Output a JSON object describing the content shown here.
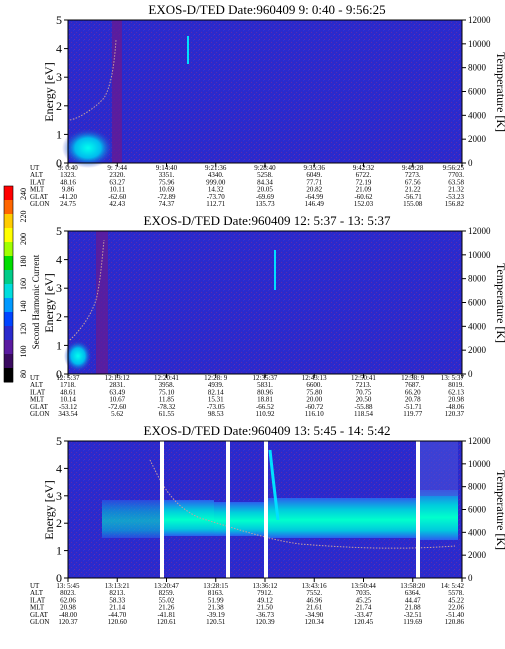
{
  "colors": {
    "background": "#2a2acc",
    "accent": "#6a2aa8",
    "band": "#00e0d0",
    "line": "#b08878"
  },
  "colorbar": {
    "label": "Second Harmonic Current",
    "ticks": [
      "240",
      "220",
      "200",
      "180",
      "160",
      "140",
      "120",
      "100",
      "80"
    ],
    "colors": [
      "#ff0000",
      "#ff6600",
      "#ffcc00",
      "#ffff00",
      "#a0ff00",
      "#00dd00",
      "#00cc88",
      "#00dddd",
      "#0099ff",
      "#0044ff",
      "#2a2acc",
      "#5a1aa0",
      "#3a0a60",
      "#000000"
    ]
  },
  "chart_data": [
    {
      "type": "heatmap",
      "title": "EXOS-D/TED   Date:960409   9: 0:40 - 9:56:25",
      "ylabel": "Energy [eV]",
      "y2label": "Temperature [K]",
      "ylim": [
        0,
        5
      ],
      "y2lim": [
        0,
        12000
      ],
      "yticks": [
        "0",
        "1",
        "2",
        "3",
        "4",
        "5"
      ],
      "y2ticks": [
        "0",
        "2000",
        "4000",
        "6000",
        "8000",
        "10000",
        "12000"
      ],
      "row_labels": [
        "UT",
        "ALT",
        "ILAT",
        "MLT",
        "GLAT",
        "GLON"
      ],
      "columns": [
        [
          "9: 0:40",
          "1323.",
          "48.16",
          "9.86",
          "-41.20",
          "24.75"
        ],
        [
          "9: 7:44",
          "2320.",
          "63.27",
          "10.11",
          "-62.60",
          "42.43"
        ],
        [
          "9:14:40",
          "3351.",
          "75.96",
          "10.69",
          "-72.89",
          "74.37"
        ],
        [
          "9:21:36",
          "4340.",
          "999.00",
          "14.32",
          "-73.70",
          "112.71"
        ],
        [
          "9:28:40",
          "5258.",
          "84.34",
          "20.05",
          "-69.69",
          "135.73"
        ],
        [
          "9:35:36",
          "6049.",
          "77.71",
          "20.82",
          "-64.99",
          "146.49"
        ],
        [
          "9:42:32",
          "6722.",
          "72.19",
          "21.09",
          "-60.62",
          "152.03"
        ],
        [
          "9:49:28",
          "7273.",
          "67.56",
          "21.22",
          "-56.71",
          "155.08"
        ],
        [
          "9:56:25",
          "7703.",
          "63.58",
          "21.32",
          "-53.23",
          "156.82"
        ]
      ]
    },
    {
      "type": "heatmap",
      "title": "EXOS-D/TED   Date:960409   12: 5:37 - 13: 5:37",
      "ylabel": "Energy [eV]",
      "y2label": "Temperature [K]",
      "ylim": [
        0,
        5
      ],
      "y2lim": [
        0,
        12000
      ],
      "yticks": [
        "0",
        "1",
        "2",
        "3",
        "4",
        "5"
      ],
      "y2ticks": [
        "0",
        "2000",
        "4000",
        "6000",
        "8000",
        "10000",
        "12000"
      ],
      "row_labels": [
        "UT",
        "ALT",
        "ILAT",
        "MLT",
        "GLAT",
        "GLON"
      ],
      "columns": [
        [
          "12: 5:37",
          "1718.",
          "48.61",
          "10.14",
          "-53.12",
          "343.54"
        ],
        [
          "12:13:12",
          "2831.",
          "63.49",
          "10.67",
          "-72.60",
          "5.62"
        ],
        [
          "12:20:41",
          "3958.",
          "75.10",
          "11.85",
          "-78.32",
          "61.55"
        ],
        [
          "12:28: 9",
          "4939.",
          "82.14",
          "15.31",
          "-73.05",
          "98.53"
        ],
        [
          "12:35:37",
          "5831.",
          "80.96",
          "18.81",
          "-66.52",
          "110.92"
        ],
        [
          "12:43:13",
          "6600.",
          "75.80",
          "20.00",
          "-60.72",
          "116.10"
        ],
        [
          "12:50:41",
          "7213.",
          "70.75",
          "20.50",
          "-55.88",
          "118.54"
        ],
        [
          "12:58: 9",
          "7687.",
          "66.20",
          "20.78",
          "-51.71",
          "119.77"
        ],
        [
          "13: 5:37",
          "8019.",
          "62.13",
          "20.98",
          "-48.06",
          "120.37"
        ]
      ]
    },
    {
      "type": "heatmap",
      "title": "EXOS-D/TED   Date:960409   13: 5:45 - 14: 5:42",
      "ylabel": "Energy [eV]",
      "y2label": "Temperature [K]",
      "ylim": [
        0,
        5
      ],
      "y2lim": [
        0,
        12000
      ],
      "yticks": [
        "0",
        "1",
        "2",
        "3",
        "4",
        "5"
      ],
      "y2ticks": [
        "0",
        "2000",
        "4000",
        "6000",
        "8000",
        "10000",
        "12000"
      ],
      "row_labels": [
        "UT",
        "ALT",
        "ILAT",
        "MLT",
        "GLAT",
        "GLON"
      ],
      "columns": [
        [
          "13: 5:45",
          "8023.",
          "62.06",
          "20.98",
          "-48.00",
          "120.37"
        ],
        [
          "13:13:21",
          "8213.",
          "58.33",
          "21.14",
          "-44.70",
          "120.60"
        ],
        [
          "13:20:47",
          "8259.",
          "55.02",
          "21.26",
          "-41.81",
          "120.61"
        ],
        [
          "13:28:15",
          "8163.",
          "51.99",
          "21.38",
          "-39.19",
          "120.51"
        ],
        [
          "13:36:12",
          "7912.",
          "49.12",
          "21.50",
          "-36.73",
          "120.39"
        ],
        [
          "13:43:16",
          "7552.",
          "46.96",
          "21.61",
          "-34.90",
          "120.34"
        ],
        [
          "13:50:44",
          "7035.",
          "45.25",
          "21.74",
          "-33.47",
          "120.45"
        ],
        [
          "13:58:20",
          "6364.",
          "44.47",
          "21.88",
          "-32.51",
          "119.69"
        ],
        [
          "14: 5:42",
          "5578.",
          "45.22",
          "22.06",
          "-51.40",
          "120.86"
        ]
      ]
    }
  ]
}
